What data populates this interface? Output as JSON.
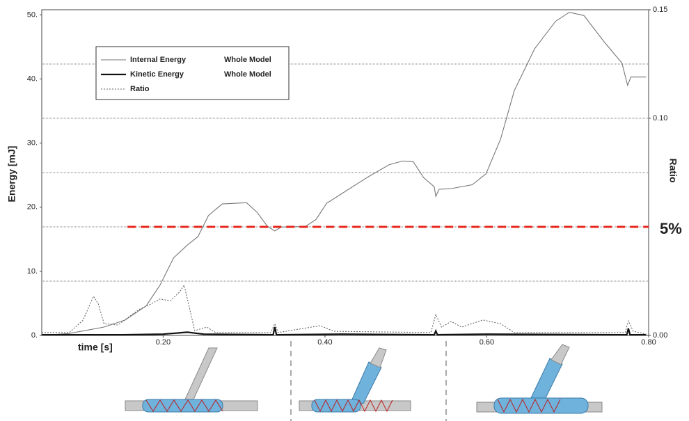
{
  "chart_data": {
    "type": "line",
    "xlabel": "time [s]",
    "ylabel": "Energy [mJ]",
    "y2label": "Ratio",
    "xlim": [
      0.05,
      0.8
    ],
    "xticks": [
      {
        "value": 0.2,
        "label": "0.20"
      },
      {
        "value": 0.4,
        "label": "0.40"
      },
      {
        "value": 0.6,
        "label": "0.60"
      },
      {
        "value": 0.8,
        "label": "0.80"
      }
    ],
    "ylim": [
      0,
      50.8
    ],
    "yticks": [
      {
        "value": 0,
        "label": "0."
      },
      {
        "value": 10,
        "label": "10."
      },
      {
        "value": 20,
        "label": "20."
      },
      {
        "value": 30,
        "label": "30."
      },
      {
        "value": 40,
        "label": "40."
      },
      {
        "value": 50,
        "label": "50."
      }
    ],
    "y2lim": [
      0,
      0.15
    ],
    "y2ticks": [
      {
        "value": 0,
        "label": "0.00"
      },
      {
        "value": 0.1,
        "label": "0.10"
      },
      {
        "value": 0.15,
        "label": "0.15"
      }
    ],
    "y2_gridlines": [
      0.025,
      0.05,
      0.075,
      0.1,
      0.125
    ],
    "series": [
      {
        "name": "Internal Energy",
        "region": "Whole Model",
        "color": "#777777",
        "line_style": "solid",
        "x": [
          0.05,
          0.084,
          0.127,
          0.153,
          0.179,
          0.196,
          0.213,
          0.23,
          0.243,
          0.256,
          0.273,
          0.303,
          0.316,
          0.329,
          0.338,
          0.346,
          0.376,
          0.389,
          0.402,
          0.428,
          0.453,
          0.479,
          0.496,
          0.509,
          0.522,
          0.535,
          0.537,
          0.541,
          0.556,
          0.582,
          0.599,
          0.617,
          0.634,
          0.659,
          0.685,
          0.702,
          0.72,
          0.745,
          0.767,
          0.774,
          0.778,
          0.797
        ],
        "values": [
          0,
          0.3,
          1.3,
          2.4,
          4.6,
          7.8,
          12.1,
          14.1,
          15.4,
          18.7,
          20.5,
          20.7,
          19.2,
          17.0,
          16.3,
          16.9,
          17.0,
          18.1,
          20.6,
          22.7,
          24.7,
          26.6,
          27.2,
          27.1,
          24.6,
          23.2,
          21.7,
          22.8,
          22.9,
          23.5,
          25.2,
          30.6,
          38.2,
          44.7,
          49.0,
          50.4,
          49.9,
          45.8,
          42.5,
          39.0,
          40.3,
          40.3
        ]
      },
      {
        "name": "Kinetic Energy",
        "region": "Whole Model",
        "color": "#111111",
        "line_style": "solid",
        "x": [
          0.05,
          0.15,
          0.2,
          0.23,
          0.25,
          0.336,
          0.338,
          0.34,
          0.42,
          0.535,
          0.537,
          0.539,
          0.6,
          0.773,
          0.775,
          0.777,
          0.797
        ],
        "values": [
          0.1,
          0.1,
          0.2,
          0.5,
          0.2,
          0.1,
          1.3,
          0.1,
          0.2,
          0.1,
          0.7,
          0.1,
          0.2,
          0.1,
          1.1,
          0.1,
          0.1
        ]
      },
      {
        "name": "Ratio",
        "axis": "y2",
        "color": "#666666",
        "line_style": "dotted",
        "x": [
          0.05,
          0.084,
          0.101,
          0.114,
          0.12,
          0.127,
          0.144,
          0.17,
          0.183,
          0.196,
          0.209,
          0.22,
          0.226,
          0.232,
          0.239,
          0.254,
          0.265,
          0.333,
          0.338,
          0.342,
          0.394,
          0.411,
          0.531,
          0.537,
          0.544,
          0.556,
          0.569,
          0.595,
          0.617,
          0.634,
          0.771,
          0.775,
          0.781,
          0.797
        ],
        "values": [
          0.0013,
          0.0013,
          0.007,
          0.018,
          0.0144,
          0.0054,
          0.0048,
          0.0119,
          0.0141,
          0.0167,
          0.016,
          0.0199,
          0.0231,
          0.0135,
          0.0022,
          0.0038,
          0.0013,
          0.0013,
          0.0054,
          0.0013,
          0.0045,
          0.0019,
          0.0013,
          0.0096,
          0.0038,
          0.0064,
          0.0038,
          0.0071,
          0.0054,
          0.0013,
          0.0013,
          0.0067,
          0.0019,
          0.0006
        ]
      }
    ],
    "annotations": [
      {
        "text": "5%",
        "value": 0.05,
        "axis": "y2",
        "x_start": 0.156,
        "x_end": 0.8,
        "color": "#e8281e"
      }
    ]
  }
}
